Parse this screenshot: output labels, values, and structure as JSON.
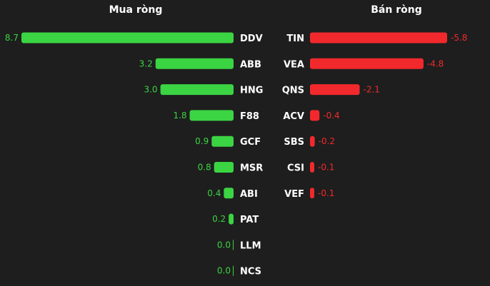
{
  "buy_title": "Mua ròng",
  "sell_title": "Bán ròng",
  "colors": {
    "positive": "#3bd443",
    "negative": "#f2292c",
    "background": "#1e1e1e",
    "label": "#ffffff"
  },
  "chart_data": [
    {
      "type": "bar",
      "orientation": "horizontal",
      "title": "Mua ròng",
      "categories": [
        "DDV",
        "ABB",
        "HNG",
        "F88",
        "GCF",
        "MSR",
        "ABI",
        "PAT",
        "LLM",
        "NCS"
      ],
      "values": [
        8.7,
        3.2,
        3.0,
        1.8,
        0.9,
        0.8,
        0.4,
        0.2,
        0.0,
        0.0
      ],
      "value_labels": [
        "8.7",
        "3.2",
        "3.0",
        "1.8",
        "0.9",
        "0.8",
        "0.4",
        "0.2",
        "0.0",
        "0.0"
      ],
      "color": "#3bd443",
      "grid": false
    },
    {
      "type": "bar",
      "orientation": "horizontal",
      "title": "Bán ròng",
      "categories": [
        "TIN",
        "VEA",
        "QNS",
        "ACV",
        "SBS",
        "CSI",
        "VEF"
      ],
      "values": [
        -5.8,
        -4.8,
        -2.1,
        -0.4,
        -0.2,
        -0.1,
        -0.1
      ],
      "value_labels": [
        "-5.8",
        "-4.8",
        "-2.1",
        "-0.4",
        "-0.2",
        "-0.1",
        "-0.1"
      ],
      "color": "#f2292c",
      "grid": false
    }
  ]
}
